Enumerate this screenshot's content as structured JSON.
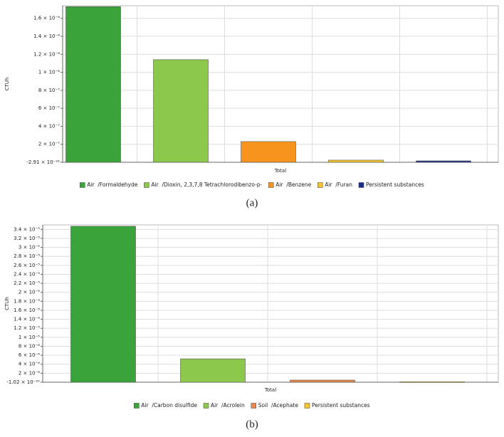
{
  "chart_data": [
    {
      "type": "bar",
      "y_label": "CTUh",
      "caption": "(a)",
      "categories": [
        "Total"
      ],
      "series": [
        {
          "name": "Air  /Formaldehyde",
          "color": "#3aa33a",
          "values": [
            1.73e-06
          ]
        },
        {
          "name": "Air  /Dioxin, 2,3,7,8 Tetrachlorodibenzo-p-",
          "color": "#8cc84b",
          "values": [
            1.14e-06
          ]
        },
        {
          "name": "Air  /Benzene",
          "color": "#f7941d",
          "values": [
            2.3e-07
          ]
        },
        {
          "name": "Air  /Furan",
          "color": "#f5c431",
          "values": [
            2.4e-08
          ]
        },
        {
          "name": "Persistent substances",
          "color": "#1a2f8c",
          "values": [
            1.6e-08
          ]
        }
      ],
      "ylim": [
        -2.91e-22,
        1.74e-06
      ],
      "yticks": [
        {
          "value": -2.91e-22,
          "label": "-2.91 × 10⁻²²"
        },
        {
          "value": 2e-07,
          "label": "2 × 10⁻⁷"
        },
        {
          "value": 4e-07,
          "label": "4 × 10⁻⁷"
        },
        {
          "value": 6e-07,
          "label": "6 × 10⁻⁷"
        },
        {
          "value": 8e-07,
          "label": "8 × 10⁻⁷"
        },
        {
          "value": 1e-06,
          "label": "1 × 10⁻⁶"
        },
        {
          "value": 1.2e-06,
          "label": "1.2 × 10⁻⁶"
        },
        {
          "value": 1.4e-06,
          "label": "1.4 × 10⁻⁶"
        },
        {
          "value": 1.6e-06,
          "label": "1.6 × 10⁻⁶"
        }
      ],
      "grid": true,
      "legend": "bottom"
    },
    {
      "type": "bar",
      "y_label": "CTUh",
      "caption": "(b)",
      "categories": [
        "Total"
      ],
      "series": [
        {
          "name": "Air  /Carbon disulfide",
          "color": "#3aa33a",
          "values": [
            3.47e-05
          ]
        },
        {
          "name": "Air  /Acrolein",
          "color": "#8cc84b",
          "values": [
            5.2e-06
          ]
        },
        {
          "name": "Soil  /Acephate",
          "color": "#e8884a",
          "values": [
            4.7e-07
          ]
        },
        {
          "name": "Persistent substances",
          "color": "#f5c431",
          "values": [
            1e-07
          ]
        }
      ],
      "ylim": [
        -1.02e-20,
        3.5e-05
      ],
      "yticks": [
        {
          "value": -1.02e-20,
          "label": "-1.02 × 10⁻²⁰"
        },
        {
          "value": 2e-06,
          "label": "2 × 10⁻⁶"
        },
        {
          "value": 4e-06,
          "label": "4 × 10⁻⁶"
        },
        {
          "value": 6e-06,
          "label": "6 × 10⁻⁶"
        },
        {
          "value": 8e-06,
          "label": "8 × 10⁻⁶"
        },
        {
          "value": 1e-05,
          "label": "1 × 10⁻⁵"
        },
        {
          "value": 1.2e-05,
          "label": "1.2 × 10⁻⁵"
        },
        {
          "value": 1.4e-05,
          "label": "1.4 × 10⁻⁵"
        },
        {
          "value": 1.6e-05,
          "label": "1.6 × 10⁻⁵"
        },
        {
          "value": 1.8e-05,
          "label": "1.8 × 10⁻⁵"
        },
        {
          "value": 2e-05,
          "label": "2 × 10⁻⁵"
        },
        {
          "value": 2.2e-05,
          "label": "2.2 × 10⁻⁵"
        },
        {
          "value": 2.4e-05,
          "label": "2.4 × 10⁻⁵"
        },
        {
          "value": 2.6e-05,
          "label": "2.6 × 10⁻⁵"
        },
        {
          "value": 2.8e-05,
          "label": "2.8 × 10⁻⁵"
        },
        {
          "value": 3e-05,
          "label": "3 × 10⁻⁵"
        },
        {
          "value": 3.2e-05,
          "label": "3.2 × 10⁻⁵"
        },
        {
          "value": 3.4e-05,
          "label": "3.4 × 10⁻⁵"
        }
      ],
      "grid": true,
      "legend": "bottom"
    }
  ]
}
